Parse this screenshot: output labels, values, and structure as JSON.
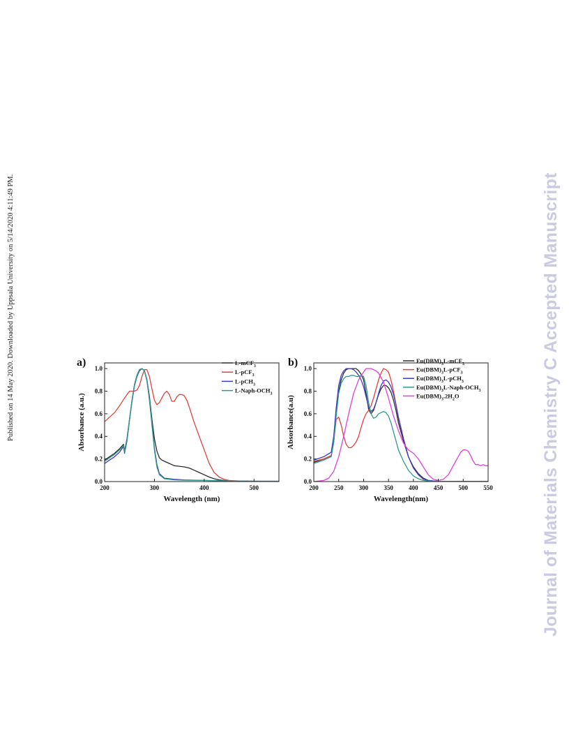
{
  "side_note": "Published on 14 May 2020. Downloaded by Uppsala University on 5/14/2020 4:11:49 PM.",
  "watermark": "Journal of Materials Chemistry C Accepted Manuscript",
  "colors": {
    "black": "#2b2b2b",
    "red": "#e0423a",
    "blue": "#3a3acc",
    "teal": "#2e9a8e",
    "magenta": "#e23ce0"
  },
  "chart_data": [
    {
      "panel_label": "a)",
      "type": "line",
      "xlabel": "Wavelength (nm)",
      "ylabel": "Absorbance (a.u.)",
      "xlim": [
        200,
        550
      ],
      "ylim": [
        0.0,
        1.05
      ],
      "xticks": [
        200,
        300,
        400,
        500
      ],
      "yticks": [
        0.0,
        0.2,
        0.4,
        0.6,
        0.8,
        1.0
      ],
      "xtick_labels": [
        "200",
        "300",
        "400",
        "500"
      ],
      "ytick_labels": [
        "0.0",
        "0.2",
        "0.4",
        "0.6",
        "0.8",
        "1.0"
      ],
      "grid": false,
      "legend_position": "top-right",
      "series": [
        {
          "name": "L-mCF",
          "sub": "3",
          "color_key": "black",
          "x": [
            200,
            210,
            220,
            230,
            238,
            240,
            245,
            250,
            255,
            260,
            265,
            270,
            275,
            280,
            285,
            290,
            295,
            300,
            305,
            310,
            315,
            320,
            330,
            340,
            350,
            360,
            370,
            380,
            390,
            400,
            410,
            420,
            430,
            440,
            450,
            470,
            500,
            550
          ],
          "y": [
            0.19,
            0.22,
            0.25,
            0.29,
            0.33,
            0.27,
            0.38,
            0.55,
            0.72,
            0.86,
            0.94,
            0.99,
            1.0,
            0.98,
            0.9,
            0.75,
            0.55,
            0.38,
            0.27,
            0.21,
            0.19,
            0.18,
            0.16,
            0.14,
            0.135,
            0.13,
            0.12,
            0.1,
            0.08,
            0.06,
            0.04,
            0.025,
            0.015,
            0.01,
            0.005,
            0.003,
            0.002,
            0.002
          ]
        },
        {
          "name": "L-pCF",
          "sub": "3",
          "color_key": "red",
          "x": [
            200,
            210,
            220,
            230,
            240,
            250,
            255,
            260,
            265,
            270,
            275,
            280,
            285,
            290,
            295,
            300,
            305,
            310,
            315,
            320,
            325,
            330,
            335,
            340,
            345,
            350,
            355,
            360,
            365,
            370,
            375,
            380,
            390,
            400,
            410,
            420,
            430,
            440,
            450,
            470,
            500,
            550
          ],
          "y": [
            0.53,
            0.57,
            0.61,
            0.67,
            0.74,
            0.8,
            0.8,
            0.8,
            0.81,
            0.85,
            0.93,
            0.99,
            0.99,
            0.93,
            0.82,
            0.72,
            0.68,
            0.7,
            0.74,
            0.78,
            0.8,
            0.77,
            0.71,
            0.71,
            0.75,
            0.77,
            0.77,
            0.76,
            0.72,
            0.66,
            0.59,
            0.52,
            0.4,
            0.28,
            0.16,
            0.08,
            0.04,
            0.02,
            0.01,
            0.005,
            0.003,
            0.002
          ]
        },
        {
          "name": "L-pCH",
          "sub": "3",
          "color_key": "blue",
          "x": [
            200,
            210,
            220,
            230,
            238,
            240,
            245,
            250,
            255,
            260,
            265,
            270,
            275,
            280,
            285,
            290,
            295,
            300,
            305,
            310,
            320,
            340,
            360,
            400,
            450,
            500,
            550
          ],
          "y": [
            0.16,
            0.19,
            0.22,
            0.26,
            0.31,
            0.25,
            0.36,
            0.54,
            0.71,
            0.85,
            0.93,
            0.98,
            1.0,
            0.98,
            0.9,
            0.74,
            0.52,
            0.3,
            0.15,
            0.07,
            0.03,
            0.02,
            0.015,
            0.01,
            0.005,
            0.003,
            0.003
          ]
        },
        {
          "name": "L-Naph-OCH",
          "sub": "3",
          "color_key": "teal",
          "x": [
            200,
            210,
            220,
            230,
            238,
            240,
            245,
            250,
            255,
            260,
            265,
            270,
            275,
            280,
            285,
            290,
            295,
            300,
            305,
            310,
            320,
            340,
            360,
            400,
            450,
            500,
            550
          ],
          "y": [
            0.18,
            0.21,
            0.24,
            0.28,
            0.32,
            0.26,
            0.37,
            0.55,
            0.72,
            0.86,
            0.94,
            0.99,
            1.0,
            0.98,
            0.89,
            0.72,
            0.5,
            0.28,
            0.13,
            0.06,
            0.025,
            0.015,
            0.012,
            0.01,
            0.005,
            0.003,
            0.003
          ]
        }
      ]
    },
    {
      "panel_label": "b)",
      "type": "line",
      "xlabel": "Wavelength(nm)",
      "ylabel": "Absorbance(a.u)",
      "xlim": [
        200,
        550
      ],
      "ylim": [
        0.0,
        1.05
      ],
      "xticks": [
        200,
        250,
        300,
        350,
        400,
        450,
        500,
        550
      ],
      "yticks": [
        0.0,
        0.2,
        0.4,
        0.6,
        0.8,
        1.0
      ],
      "xtick_labels": [
        "200",
        "250",
        "300",
        "350",
        "400",
        "450",
        "500",
        "550"
      ],
      "ytick_labels": [
        "0.0",
        "0.2",
        "0.4",
        "0.6",
        "0.8",
        "1.0"
      ],
      "grid": false,
      "legend_position": "top-right",
      "series": [
        {
          "name": "Eu(DBM)",
          "sub": "3",
          "suffix": "L-mCF",
          "sub2": "3",
          "color_key": "black",
          "x": [
            200,
            220,
            235,
            240,
            245,
            250,
            255,
            260,
            265,
            270,
            275,
            280,
            285,
            290,
            295,
            300,
            305,
            310,
            315,
            320,
            325,
            330,
            335,
            340,
            345,
            350,
            355,
            360,
            365,
            370,
            380,
            390,
            400,
            410,
            420,
            430,
            440,
            450,
            470,
            500,
            550
          ],
          "y": [
            0.17,
            0.2,
            0.23,
            0.35,
            0.6,
            0.8,
            0.9,
            0.96,
            0.99,
            1.0,
            1.0,
            1.0,
            1.0,
            0.98,
            0.95,
            0.9,
            0.78,
            0.64,
            0.6,
            0.63,
            0.7,
            0.77,
            0.82,
            0.85,
            0.85,
            0.83,
            0.79,
            0.72,
            0.63,
            0.52,
            0.36,
            0.22,
            0.13,
            0.07,
            0.03,
            0.01,
            0.005,
            0.003,
            0.002,
            0.002,
            0.002
          ]
        },
        {
          "name": "Eu(DBM)",
          "sub": "3",
          "suffix": "L-pCF",
          "sub2": "3",
          "color_key": "red",
          "x": [
            200,
            220,
            235,
            240,
            245,
            250,
            255,
            260,
            265,
            270,
            275,
            280,
            285,
            290,
            295,
            300,
            305,
            310,
            315,
            320,
            325,
            330,
            335,
            340,
            345,
            350,
            355,
            360,
            365,
            370,
            380,
            390,
            400,
            410,
            420,
            430,
            440,
            450,
            470,
            500,
            550
          ],
          "y": [
            0.18,
            0.2,
            0.23,
            0.35,
            0.55,
            0.57,
            0.5,
            0.4,
            0.33,
            0.3,
            0.3,
            0.32,
            0.35,
            0.4,
            0.48,
            0.55,
            0.6,
            0.63,
            0.67,
            0.74,
            0.82,
            0.9,
            0.96,
            1.0,
            0.99,
            0.97,
            0.9,
            0.8,
            0.68,
            0.56,
            0.38,
            0.22,
            0.12,
            0.06,
            0.02,
            0.01,
            0.005,
            0.003,
            0.002,
            0.002,
            0.002
          ]
        },
        {
          "name": "Eu(DBM)",
          "sub": "3",
          "suffix": "L-pCH",
          "sub2": "3",
          "color_key": "blue",
          "x": [
            200,
            220,
            235,
            240,
            245,
            250,
            255,
            260,
            265,
            270,
            275,
            280,
            285,
            290,
            295,
            300,
            305,
            310,
            315,
            320,
            325,
            330,
            335,
            340,
            345,
            350,
            355,
            360,
            365,
            370,
            380,
            390,
            400,
            410,
            420,
            430,
            440,
            450,
            470,
            500,
            550
          ],
          "y": [
            0.19,
            0.22,
            0.26,
            0.4,
            0.65,
            0.85,
            0.94,
            0.98,
            1.0,
            1.0,
            1.0,
            0.99,
            0.97,
            0.94,
            0.9,
            0.84,
            0.75,
            0.66,
            0.62,
            0.64,
            0.7,
            0.78,
            0.85,
            0.89,
            0.9,
            0.88,
            0.84,
            0.77,
            0.68,
            0.57,
            0.38,
            0.22,
            0.12,
            0.06,
            0.025,
            0.01,
            0.005,
            0.003,
            0.002,
            0.002,
            0.002
          ]
        },
        {
          "name": "Eu(DBM)",
          "sub": "3",
          "suffix": "L-Naph-OCH",
          "sub2": "3",
          "color_key": "teal",
          "x": [
            200,
            220,
            235,
            240,
            245,
            250,
            255,
            260,
            265,
            270,
            275,
            280,
            285,
            290,
            295,
            300,
            305,
            310,
            315,
            320,
            325,
            330,
            335,
            340,
            345,
            350,
            355,
            360,
            365,
            370,
            380,
            390,
            400,
            410,
            420,
            430,
            440,
            450,
            470,
            500,
            550
          ],
          "y": [
            0.16,
            0.19,
            0.22,
            0.35,
            0.58,
            0.78,
            0.87,
            0.91,
            0.93,
            0.93,
            0.94,
            0.94,
            0.93,
            0.93,
            0.94,
            0.93,
            0.85,
            0.7,
            0.6,
            0.56,
            0.57,
            0.6,
            0.61,
            0.62,
            0.61,
            0.58,
            0.52,
            0.44,
            0.36,
            0.28,
            0.18,
            0.1,
            0.05,
            0.025,
            0.01,
            0.005,
            0.003,
            0.002,
            0.002,
            0.002,
            0.002
          ]
        },
        {
          "name": "Eu(DBM)",
          "sub": "3",
          "suffix": ".2H",
          "sub2": "2",
          "suffix2": "O",
          "color_key": "magenta",
          "x": [
            200,
            220,
            230,
            240,
            250,
            260,
            270,
            280,
            290,
            300,
            305,
            310,
            315,
            320,
            325,
            330,
            340,
            350,
            360,
            370,
            380,
            390,
            400,
            410,
            420,
            430,
            440,
            450,
            460,
            470,
            480,
            490,
            495,
            500,
            505,
            510,
            515,
            520,
            525,
            530,
            535,
            540,
            545,
            550
          ],
          "y": [
            0.0,
            0.01,
            0.03,
            0.09,
            0.22,
            0.4,
            0.6,
            0.78,
            0.9,
            0.97,
            1.0,
            1.0,
            1.0,
            0.99,
            0.98,
            0.96,
            0.88,
            0.74,
            0.58,
            0.45,
            0.34,
            0.28,
            0.25,
            0.2,
            0.13,
            0.06,
            0.02,
            0.01,
            0.02,
            0.06,
            0.14,
            0.22,
            0.26,
            0.28,
            0.28,
            0.27,
            0.23,
            0.18,
            0.15,
            0.15,
            0.14,
            0.15,
            0.14,
            0.14
          ]
        }
      ]
    }
  ]
}
